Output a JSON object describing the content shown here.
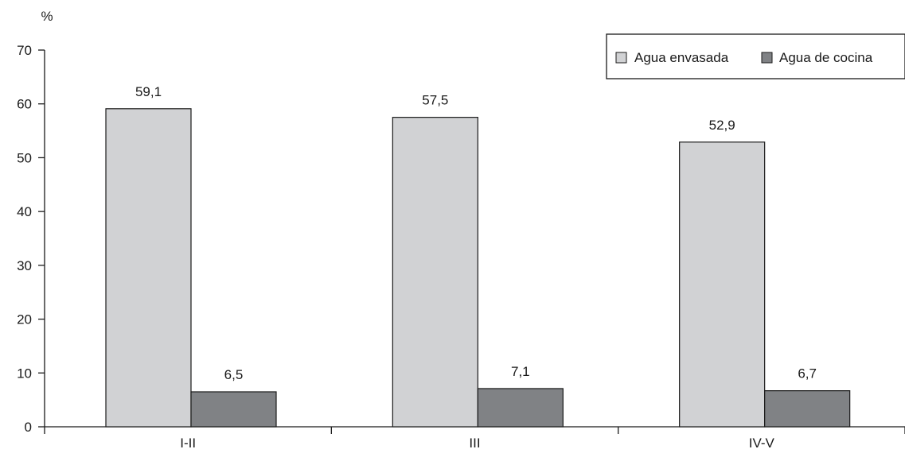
{
  "chart_data": {
    "type": "bar",
    "ylabel": "%",
    "ylim": [
      0,
      70
    ],
    "yticks": [
      0,
      10,
      20,
      30,
      40,
      50,
      60,
      70
    ],
    "categories": [
      "I-II",
      "III",
      "IV-V"
    ],
    "series": [
      {
        "name": "Agua envasada",
        "values": [
          59.1,
          57.5,
          52.9
        ],
        "labels": [
          "59,1",
          "57,5",
          "52,9"
        ],
        "color": "#d1d2d4"
      },
      {
        "name": "Agua de cocina",
        "values": [
          6.5,
          7.1,
          6.7
        ],
        "labels": [
          "6,5",
          "7,1",
          "6,7"
        ],
        "color": "#808285"
      }
    ],
    "legend_position": "top-right",
    "grid": false
  }
}
